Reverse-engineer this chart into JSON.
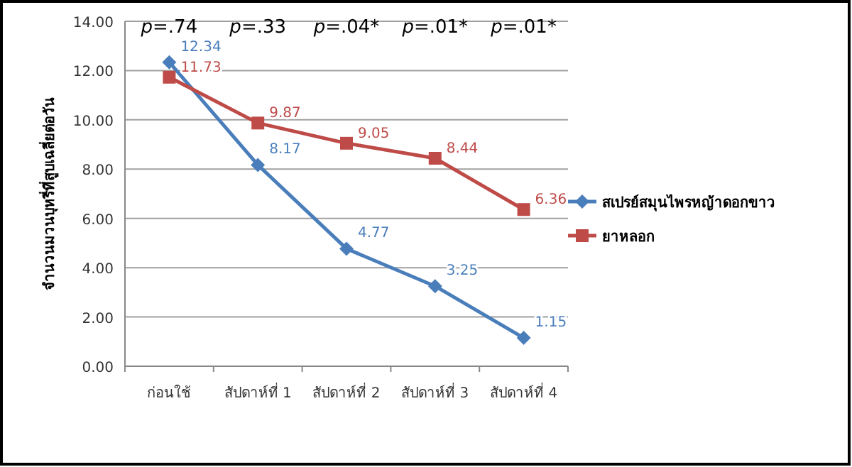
{
  "chart_data": {
    "type": "line",
    "ylabel": "จำนวนมวนบุหรี่ที่สูบเฉลี่ยต่อวัน",
    "categories": [
      "ก่อนใช้",
      "สัปดาห์ที่ 1",
      "สัปดาห์ที่ 2",
      "สัปดาห์ที่ 3",
      "สัปดาห์ที่ 4"
    ],
    "series": [
      {
        "name": "สเปรย์สมุนไพรหญ้าดอกขาว",
        "color": "#4a7ebb",
        "marker": "diamond",
        "values": [
          12.34,
          8.17,
          4.77,
          3.25,
          1.15
        ]
      },
      {
        "name": "ยาหลอก",
        "color": "#be4b48",
        "marker": "square",
        "values": [
          11.73,
          9.87,
          9.05,
          8.44,
          6.36
        ]
      }
    ],
    "ylim": [
      0,
      14
    ],
    "yticks": [
      {
        "value": 0,
        "label": "0.00"
      },
      {
        "value": 2,
        "label": "2.00"
      },
      {
        "value": 4,
        "label": "4.00"
      },
      {
        "value": 6,
        "label": "6.00"
      },
      {
        "value": 8,
        "label": "8.00"
      },
      {
        "value": 10,
        "label": "10.00"
      },
      {
        "value": 12,
        "label": "12.00"
      },
      {
        "value": 14,
        "label": "14.00"
      }
    ],
    "grid": "y",
    "legend": "right",
    "data_labels": true,
    "annotations": [
      "*p*=.74",
      "*p*=.33",
      "*p*=.04*",
      "*p*=.01*",
      "*p*=.01*"
    ]
  }
}
